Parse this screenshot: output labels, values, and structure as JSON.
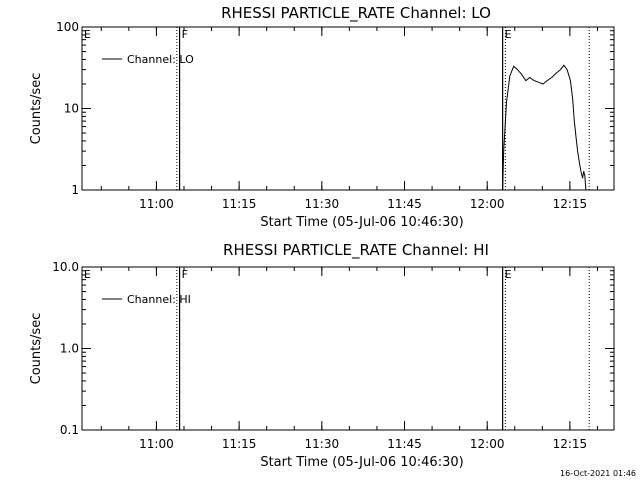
{
  "chart_data": [
    {
      "type": "line",
      "title": "RHESSI PARTICLE_RATE Channel: LO",
      "xlabel": "Start Time (05-Jul-06 10:46:30)",
      "ylabel": "Counts/sec",
      "yscale": "log",
      "ylim": [
        1,
        100
      ],
      "xlim_minutes": [
        0,
        96.5
      ],
      "x_ticks": [
        {
          "label": "11:00",
          "minutes": 13.5
        },
        {
          "label": "11:15",
          "minutes": 28.5
        },
        {
          "label": "11:30",
          "minutes": 43.5
        },
        {
          "label": "11:45",
          "minutes": 58.5
        },
        {
          "label": "12:00",
          "minutes": 73.5
        },
        {
          "label": "12:15",
          "minutes": 88.5
        }
      ],
      "y_ticks": [
        {
          "label": "1",
          "value": 1
        },
        {
          "label": "10",
          "value": 10
        },
        {
          "label": "100",
          "value": 100
        }
      ],
      "flags": [
        {
          "label": "E",
          "minutes": 0,
          "style": "none"
        },
        {
          "label": "F",
          "minutes": 17.7,
          "style": "solid"
        },
        {
          "label": "E",
          "minutes": 76.3,
          "style": "solid"
        }
      ],
      "dotted_lines_minutes": [
        17.2,
        76.8,
        92.0
      ],
      "legend": {
        "label": "Channel: LO",
        "position": "top-left"
      },
      "series": [
        {
          "name": "Channel: LO",
          "points": [
            [
              76.3,
              1.0
            ],
            [
              76.5,
              3
            ],
            [
              77.0,
              12
            ],
            [
              77.6,
              25
            ],
            [
              78.3,
              33
            ],
            [
              79.0,
              30
            ],
            [
              79.8,
              26
            ],
            [
              80.5,
              22
            ],
            [
              81.2,
              24
            ],
            [
              82.0,
              22
            ],
            [
              82.8,
              21
            ],
            [
              83.6,
              20
            ],
            [
              84.4,
              22
            ],
            [
              85.2,
              24
            ],
            [
              86.0,
              27
            ],
            [
              86.8,
              30
            ],
            [
              87.4,
              34
            ],
            [
              88.0,
              30
            ],
            [
              88.6,
              22
            ],
            [
              89.0,
              13
            ],
            [
              89.3,
              7
            ],
            [
              89.6,
              4.5
            ],
            [
              89.9,
              3
            ],
            [
              90.2,
              2.2
            ],
            [
              90.5,
              1.7
            ],
            [
              90.8,
              1.4
            ],
            [
              91.0,
              1.7
            ],
            [
              91.2,
              1.5
            ],
            [
              91.4,
              1.0
            ]
          ]
        }
      ]
    },
    {
      "type": "line",
      "title": "RHESSI PARTICLE_RATE Channel: HI",
      "xlabel": "Start Time (05-Jul-06 10:46:30)",
      "ylabel": "Counts/sec",
      "yscale": "log",
      "ylim": [
        0.1,
        10
      ],
      "xlim_minutes": [
        0,
        96.5
      ],
      "x_ticks": [
        {
          "label": "11:00",
          "minutes": 13.5
        },
        {
          "label": "11:15",
          "minutes": 28.5
        },
        {
          "label": "11:30",
          "minutes": 43.5
        },
        {
          "label": "11:45",
          "minutes": 58.5
        },
        {
          "label": "12:00",
          "minutes": 73.5
        },
        {
          "label": "12:15",
          "minutes": 88.5
        }
      ],
      "y_ticks": [
        {
          "label": "0.1",
          "value": 0.1
        },
        {
          "label": "1.0",
          "value": 1
        },
        {
          "label": "10.0",
          "value": 10
        }
      ],
      "flags": [
        {
          "label": "E",
          "minutes": 0,
          "style": "none"
        },
        {
          "label": "F",
          "minutes": 17.7,
          "style": "solid"
        },
        {
          "label": "E",
          "minutes": 76.3,
          "style": "solid"
        }
      ],
      "dotted_lines_minutes": [
        17.2,
        76.8,
        92.0
      ],
      "legend": {
        "label": "Channel: HI",
        "position": "top-left"
      },
      "series": [
        {
          "name": "Channel: HI",
          "points": []
        }
      ]
    }
  ],
  "footer": {
    "timestamp": "16-Oct-2021 01:46"
  }
}
